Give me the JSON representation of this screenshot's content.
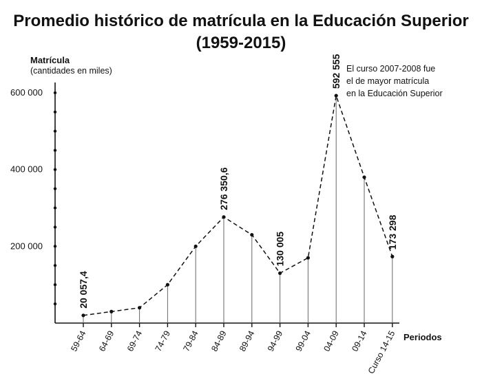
{
  "chart_data": {
    "type": "line",
    "title": "Promedio histórico de matrícula en la Educación Superior",
    "subtitle": "(1959-2015)",
    "ylabel": "Matrícula",
    "ylabel_sub": "(cantidades en miles)",
    "xlabel": "Periodos",
    "categories": [
      "59-64",
      "64-69",
      "69-74",
      "74-79",
      "79-84",
      "84-89",
      "89-94",
      "94-99",
      "99-04",
      "04-09",
      "09-14",
      "Curso 14-15"
    ],
    "values": [
      20057.4,
      30000,
      40000,
      100000,
      200000,
      276350.6,
      230000,
      130005,
      170000,
      592555,
      380000,
      173298
    ],
    "data_labels": [
      "20 057,4",
      "",
      "",
      "",
      "",
      "276 350,6",
      "",
      "130 005",
      "",
      "592 555",
      "",
      "173 298"
    ],
    "y_ticks": [
      200000,
      400000,
      600000
    ],
    "y_tick_labels": [
      "200 000",
      "400 000",
      "600 000"
    ],
    "ylim": [
      0,
      600000
    ],
    "annotation": [
      "El curso 2007-2008 fue",
      "el de mayor matrícula",
      "en la Educación Superior"
    ],
    "line_style": "dashed",
    "drop_lines": true,
    "grid": false,
    "colors": {
      "line": "#111111",
      "axis": "#111111",
      "background": "#ffffff"
    }
  }
}
